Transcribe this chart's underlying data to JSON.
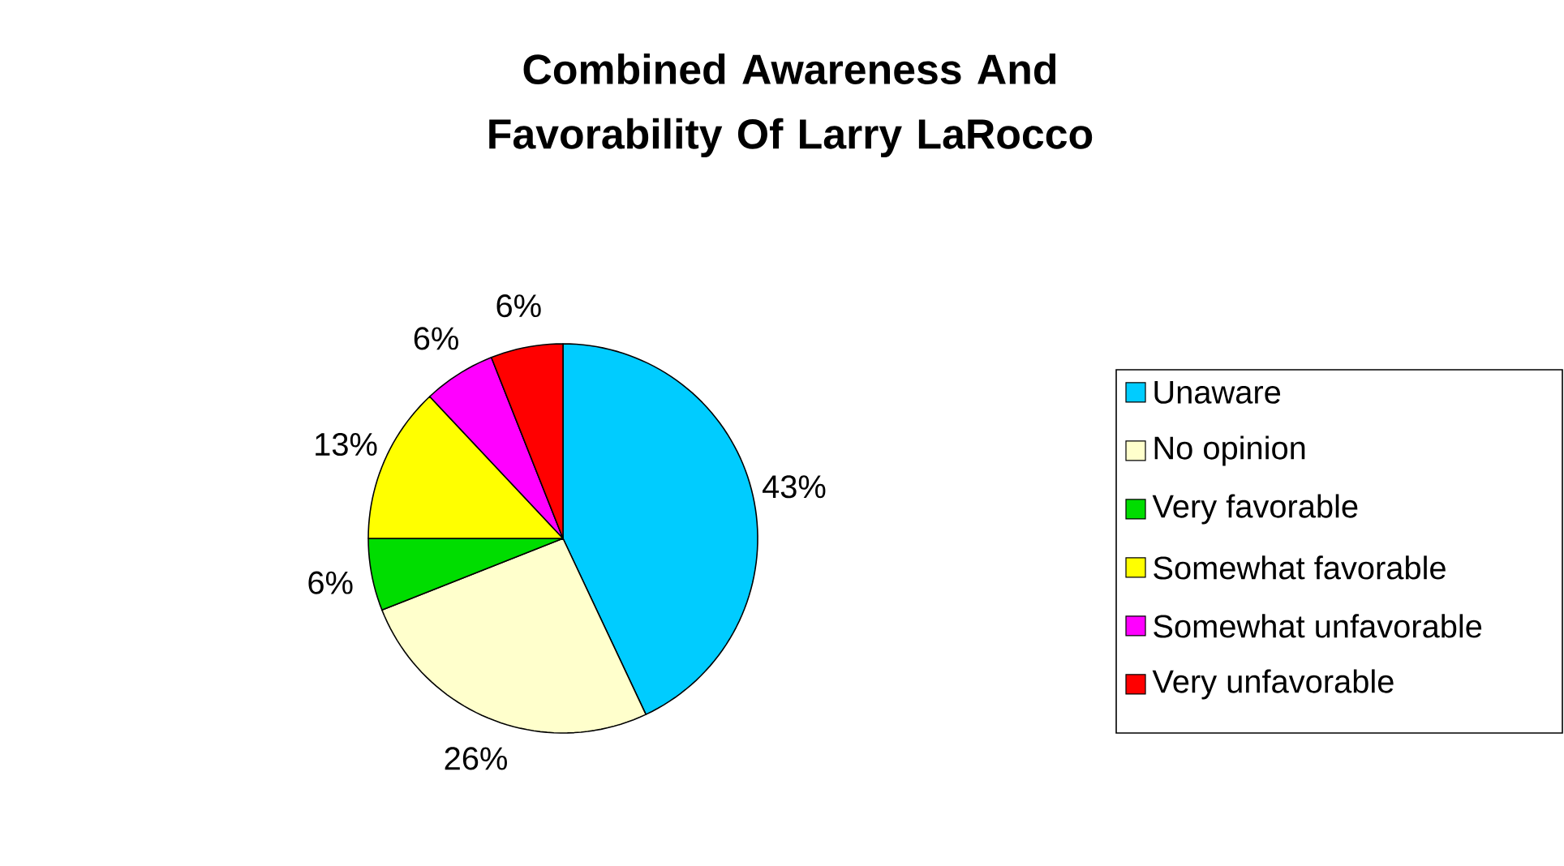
{
  "chart_data": {
    "type": "pie",
    "title": "Combined Awareness And Favorability Of Larry LaRocco",
    "categories": [
      "Unaware",
      "No opinion",
      "Very favorable",
      "Somewhat favorable",
      "Somewhat unfavorable",
      "Very unfavorable"
    ],
    "values": [
      43,
      26,
      6,
      13,
      6,
      6
    ],
    "value_labels": [
      "43%",
      "26%",
      "6%",
      "13%",
      "6%",
      "6%"
    ],
    "colors": [
      "#00ccff",
      "#ffffcc",
      "#00dd00",
      "#ffff00",
      "#ff00ff",
      "#ff0000"
    ],
    "legend": "right"
  }
}
